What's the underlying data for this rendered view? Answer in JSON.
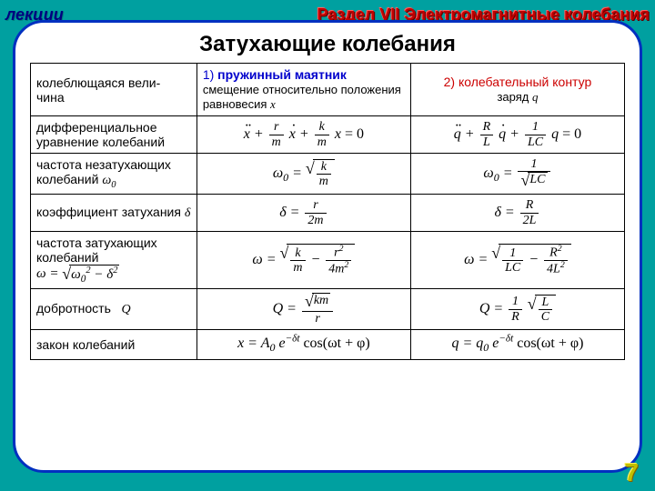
{
  "header": {
    "left": "лекции",
    "right": "Раздел VII Электромагнитные колебания"
  },
  "title": "Затухающие колебания",
  "columns": {
    "c1_label_prefix": "1) ",
    "c1_label": "пружинный маятник",
    "c1_sub": "смещение относительно положения равновесия ",
    "c1_var": "x",
    "c2_label_prefix": "2) ",
    "c2_label": "колебательный контур",
    "c2_sub": "заряд ",
    "c2_var": "q"
  },
  "rows": {
    "r1": {
      "label": "колеблющаяся вели-\nчина"
    },
    "r2": {
      "label": "дифференциальное уравнение колебаний"
    },
    "r3": {
      "label_a": "частота незатухающих колебаний ",
      "label_sym": "ω",
      "label_sub": "0"
    },
    "r4": {
      "label_a": "коэффициент затухания ",
      "label_sym": "δ"
    },
    "r5": {
      "label_a": "частота затухающих колебаний"
    },
    "r6": {
      "label_a": "добротность ",
      "label_sym": "Q"
    },
    "r7": {
      "label": "закон колебаний"
    }
  },
  "formulas": {
    "de_spring": {
      "lead": "",
      "terms": [
        "r",
        "m",
        "k",
        "m",
        "x",
        "= 0"
      ],
      "var": "x"
    },
    "de_circuit": {
      "terms": [
        "R",
        "L",
        "1",
        "LC",
        "q",
        "= 0"
      ],
      "var": "q"
    },
    "w0_spring": {
      "num": "k",
      "den": "m"
    },
    "w0_circuit": {
      "num": "1",
      "den": "LC"
    },
    "delta_spring": {
      "num": "r",
      "den": "2m"
    },
    "delta_circuit": {
      "num": "R",
      "den": "2L"
    },
    "omega_formula_left": {
      "a": "ω",
      "b": "0",
      "c": "δ"
    },
    "omega_spring": {
      "n1": "k",
      "d1": "m",
      "n2": "r",
      "d2": "4m"
    },
    "omega_circuit": {
      "n1": "1",
      "d1": "LC",
      "n2": "R",
      "d2": "4L"
    },
    "Q_spring": {
      "num": "km",
      "den": "r"
    },
    "Q_circuit": {
      "a": "1",
      "b": "R",
      "c": "L",
      "d": "C"
    },
    "law_spring": {
      "amp": "A",
      "sub": "0",
      "exp": "−δt",
      "trig": "cos(ωt + φ)",
      "var": "x"
    },
    "law_circuit": {
      "amp": "q",
      "sub": "0",
      "exp": "−δt",
      "trig": "cos(ωt + φ)",
      "var": "q"
    }
  },
  "pagenum": "7",
  "colors": {
    "bg": "#00a0a0",
    "panel_border": "#0030c0",
    "header_blue": "#0000cc",
    "header_red": "#cc0000"
  }
}
